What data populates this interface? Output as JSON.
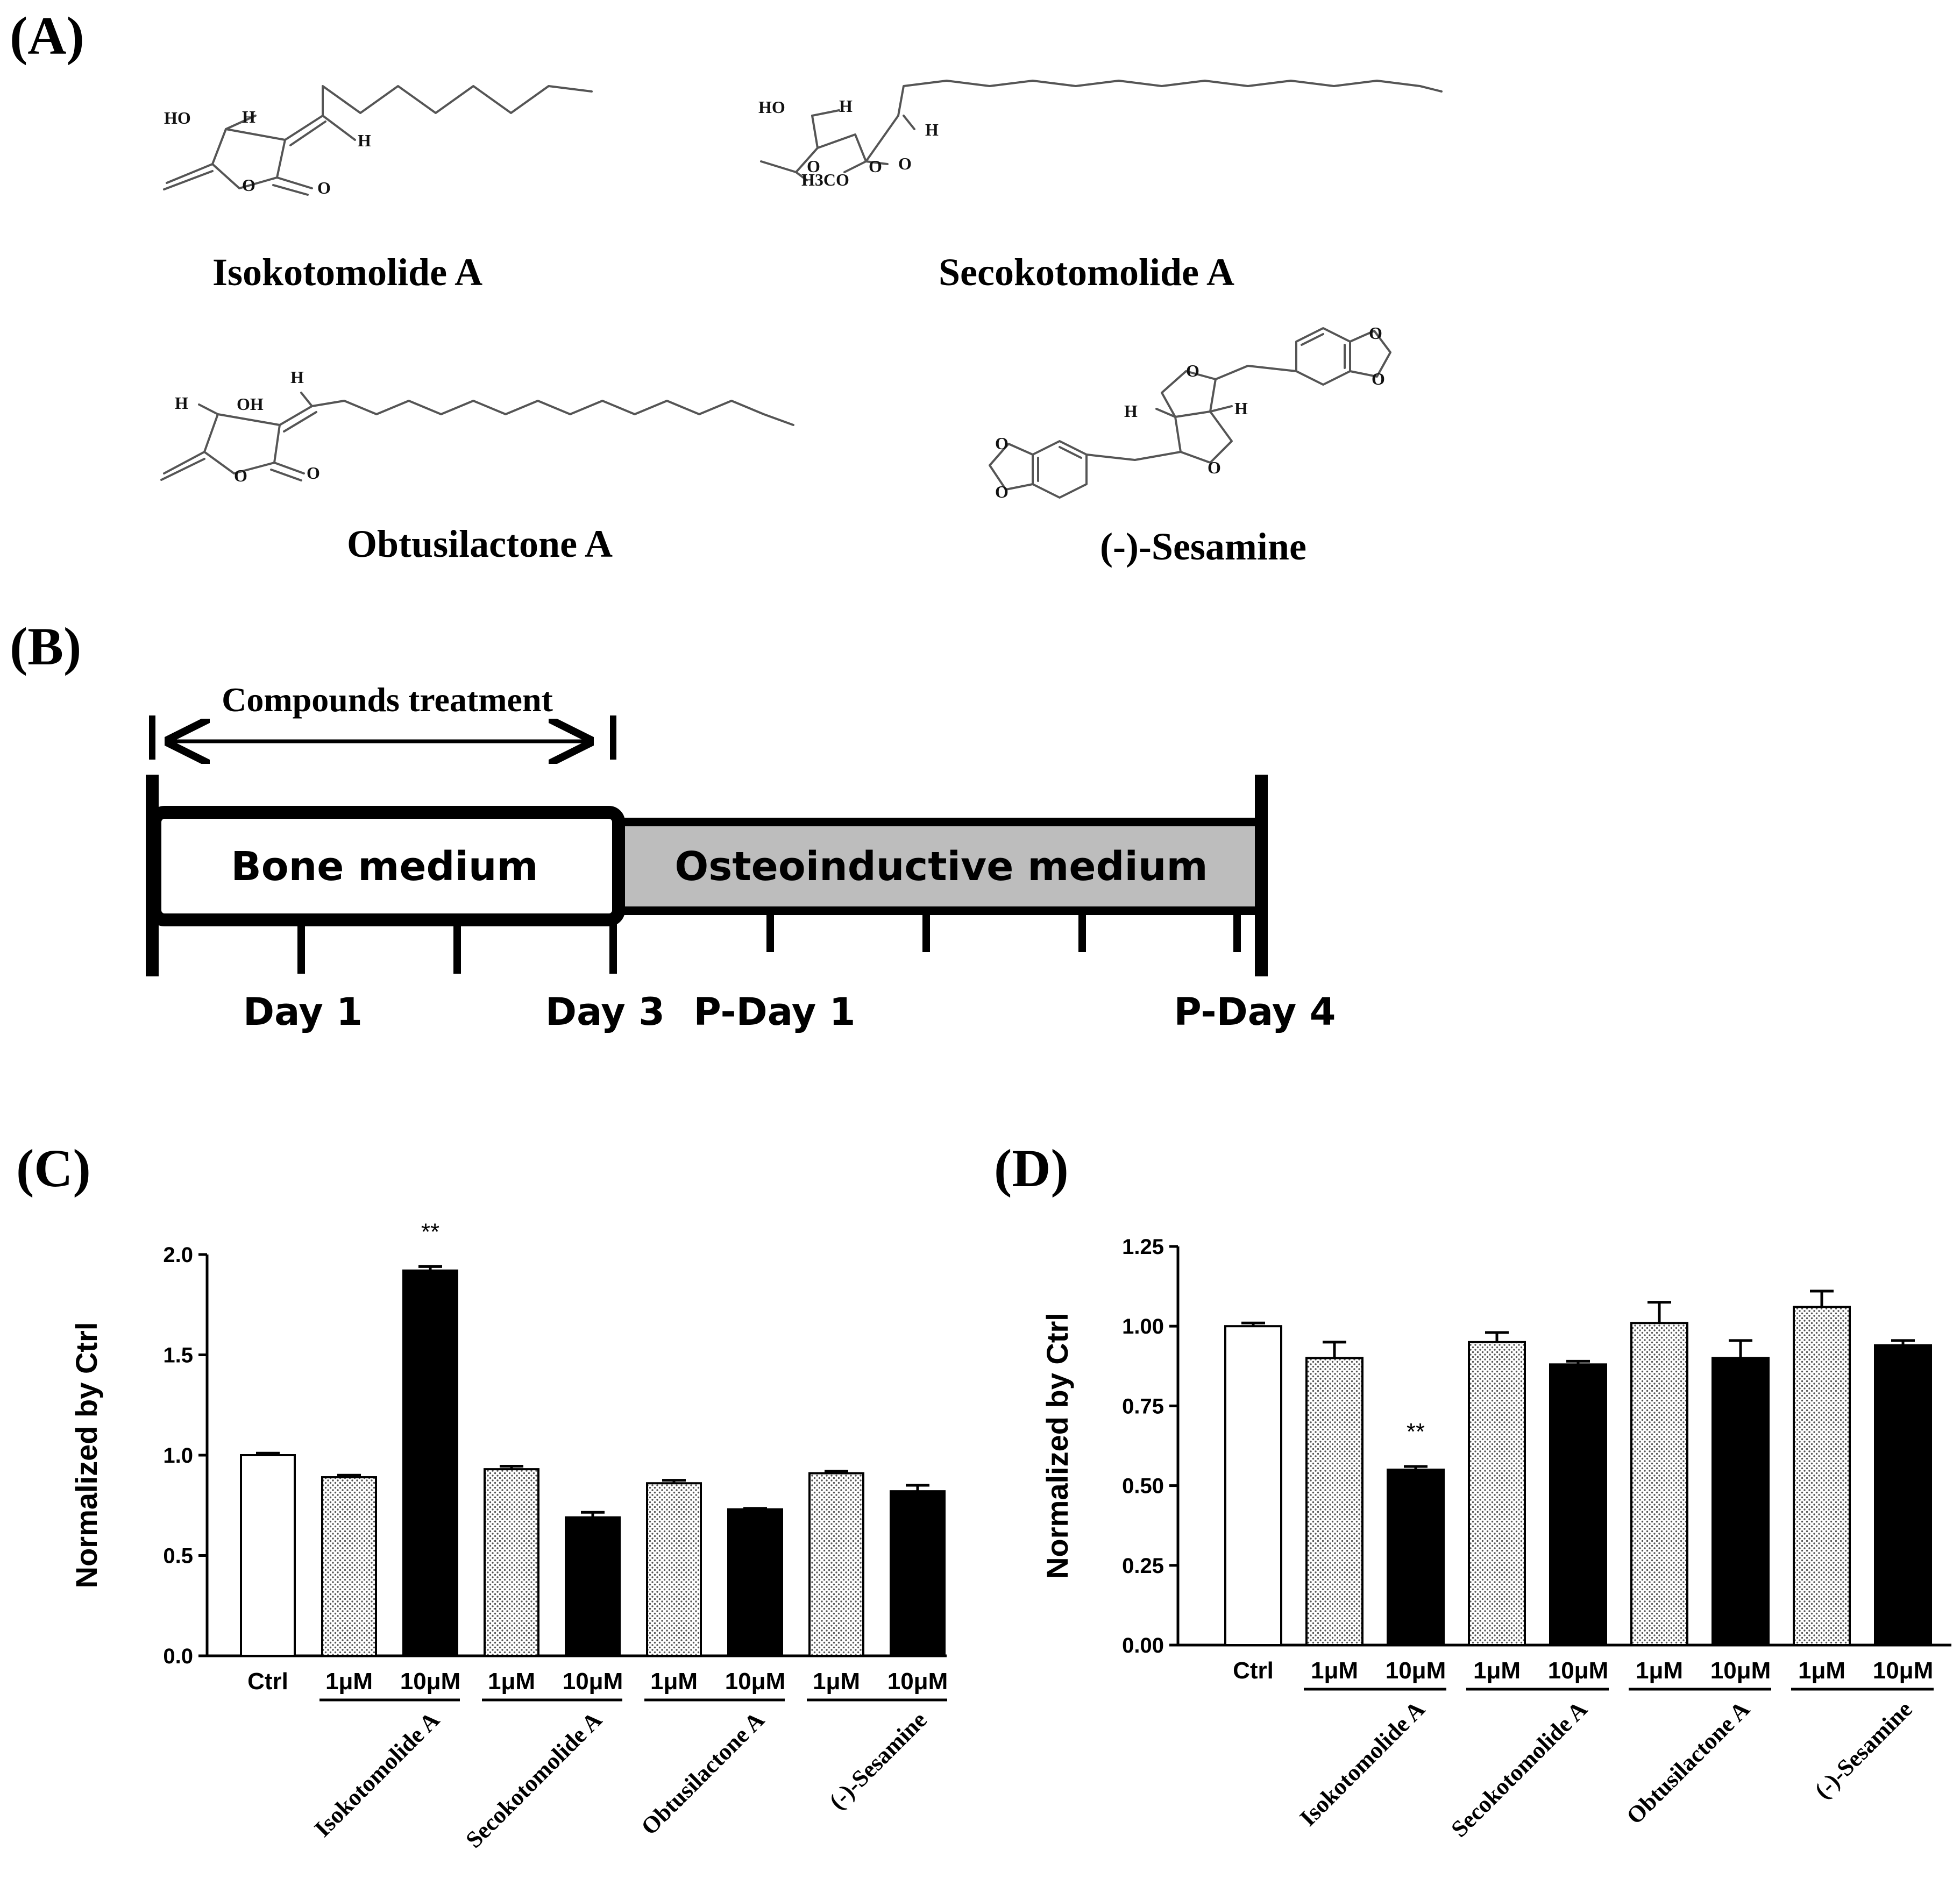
{
  "panels": {
    "a": {
      "letter": "(A)"
    },
    "b": {
      "letter": "(B)"
    },
    "c": {
      "letter": "(C)"
    },
    "d": {
      "letter": "(D)"
    }
  },
  "compounds": {
    "isokotomolide": {
      "name": "Isokotomolide A",
      "atoms": {
        "ho": "HO",
        "h1": "H",
        "h2": "H",
        "o_ring": "O",
        "o_carbonyl": "O"
      }
    },
    "secokotomolide": {
      "name": "Secokotomolide A",
      "atoms": {
        "ho": "HO",
        "h1": "H",
        "h2": "H",
        "o_a": "O",
        "o_b": "O",
        "o_c": "O",
        "h3co": "H3CO"
      }
    },
    "obtusilactone": {
      "name": "Obtusilactone A",
      "atoms": {
        "h_top": "H",
        "h_left": "H",
        "oh": "OH",
        "o_ring": "O",
        "o_carbonyl": "O"
      }
    },
    "sesamine": {
      "name": "(-)-Sesamine",
      "atoms": {
        "o1": "O",
        "o2": "O",
        "o3": "O",
        "o4": "O",
        "o5": "O",
        "o6": "O",
        "h1": "H",
        "h2": "H"
      }
    }
  },
  "timeline": {
    "treatment_label": "Compounds treatment",
    "bone_label": "Bone medium",
    "osteo_label": "Osteoinductive medium",
    "day_labels": [
      "Day 1",
      "Day 3",
      "P-Day 1",
      "P-Day 4"
    ],
    "colors": {
      "bone": "#ffffff",
      "osteo": "#bdbdbd"
    }
  },
  "chart_data": [
    {
      "type": "bar",
      "panel": "(C)",
      "ylabel": "Normalized by Ctrl",
      "ylim": [
        0,
        2.0
      ],
      "yticks": [
        "0.0",
        "0.5",
        "1.0",
        "1.5",
        "2.0"
      ],
      "ytick_values": [
        0,
        0.5,
        1.0,
        1.5,
        2.0
      ],
      "categories": [
        "Ctrl",
        "1μM",
        "10μM",
        "1μM",
        "10μM",
        "1μM",
        "10μM",
        "1μM",
        "10μM"
      ],
      "values": [
        1.0,
        0.89,
        1.92,
        0.93,
        0.69,
        0.86,
        0.73,
        0.91,
        0.82
      ],
      "errors": [
        0.01,
        0.01,
        0.02,
        0.015,
        0.025,
        0.015,
        0.005,
        0.01,
        0.03
      ],
      "fills": [
        "white",
        "dotted",
        "black",
        "dotted",
        "black",
        "dotted",
        "black",
        "dotted",
        "black"
      ],
      "groups": [
        "Isokotomolide A",
        "Secokotomolide A",
        "Obtusilactone A",
        "(-)-Sesamine"
      ],
      "annotations": [
        {
          "bar_index": 2,
          "text": "**"
        }
      ]
    },
    {
      "type": "bar",
      "panel": "(D)",
      "ylabel": "Normalized by Ctrl",
      "ylim": [
        0,
        1.25
      ],
      "yticks": [
        "0.00",
        "0.25",
        "0.50",
        "0.75",
        "1.00",
        "1.25"
      ],
      "ytick_values": [
        0,
        0.25,
        0.5,
        0.75,
        1.0,
        1.25
      ],
      "categories": [
        "Ctrl",
        "1μM",
        "10μM",
        "1μM",
        "10μM",
        "1μM",
        "10μM",
        "1μM",
        "10μM"
      ],
      "values": [
        1.0,
        0.9,
        0.55,
        0.95,
        0.88,
        1.01,
        0.9,
        1.06,
        0.94
      ],
      "errors": [
        0.01,
        0.05,
        0.01,
        0.03,
        0.01,
        0.065,
        0.055,
        0.05,
        0.015
      ],
      "fills": [
        "white",
        "dotted",
        "black",
        "dotted",
        "black",
        "dotted",
        "black",
        "dotted",
        "black"
      ],
      "groups": [
        "Isokotomolide A",
        "Secokotomolide A",
        "Obtusilactone A",
        "(-)-Sesamine"
      ],
      "annotations": [
        {
          "bar_index": 2,
          "text": "**"
        }
      ]
    }
  ]
}
